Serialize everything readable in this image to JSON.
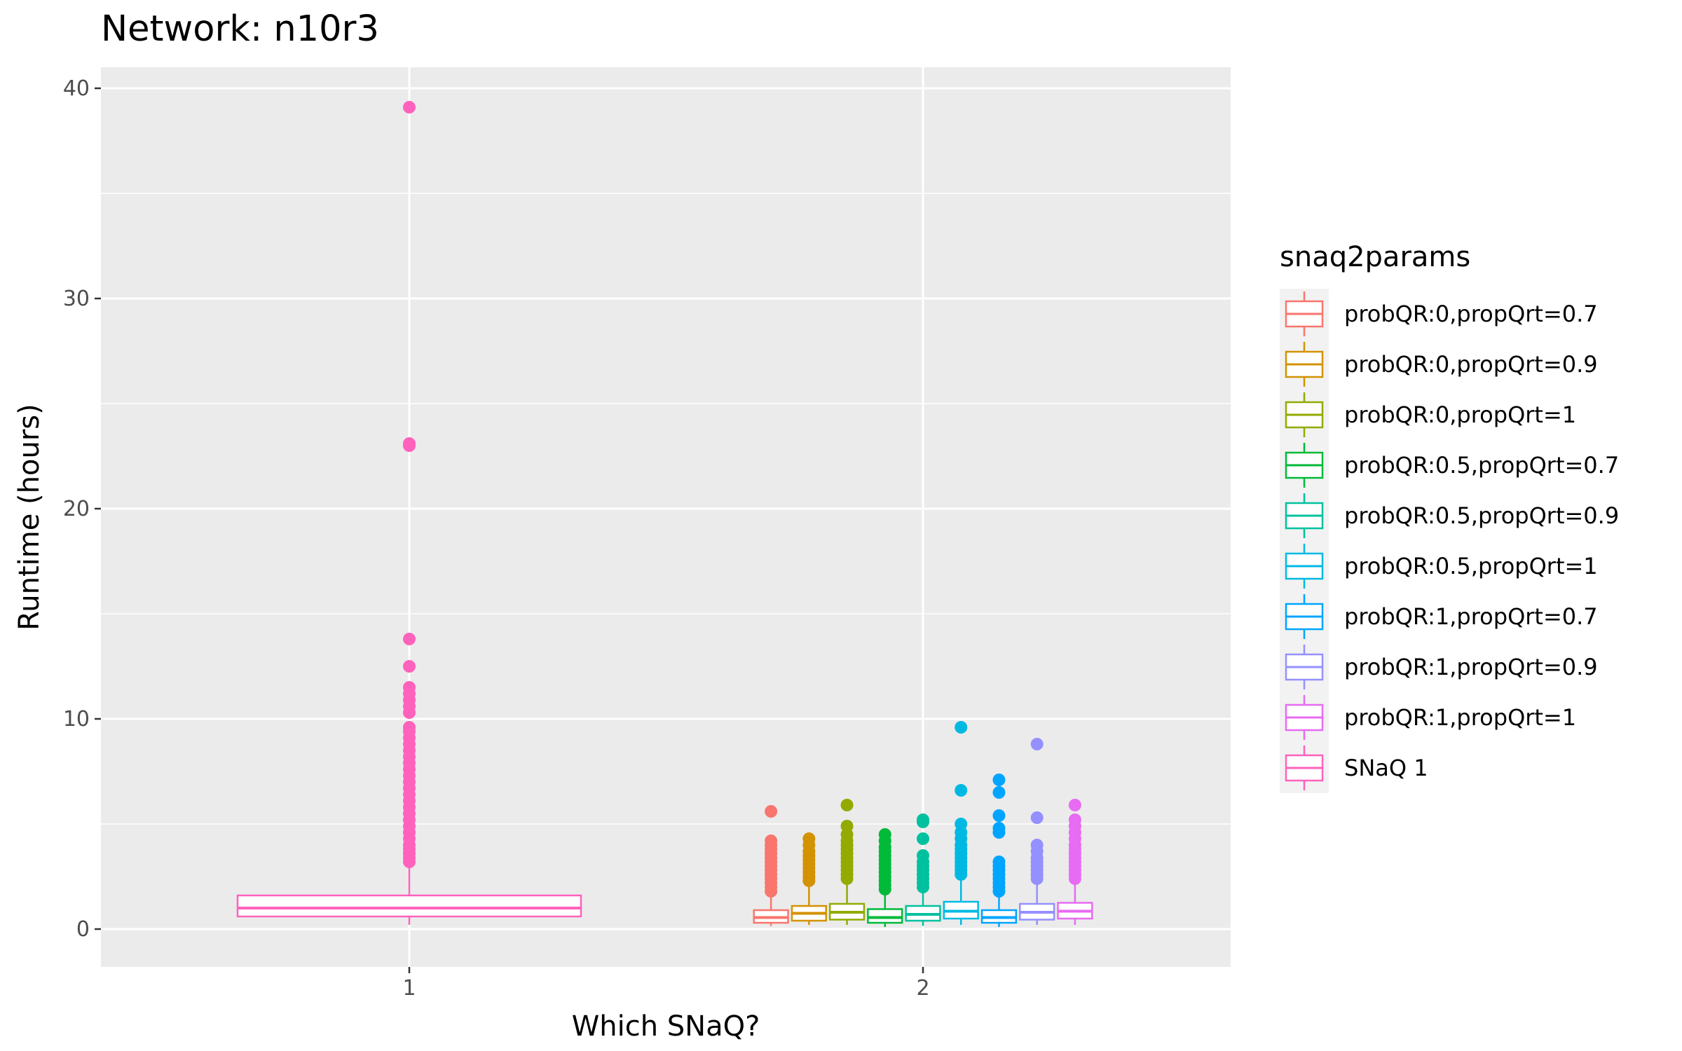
{
  "chart_data": {
    "type": "box",
    "title": "Network: n10r3",
    "xlabel": "Which SNaQ?",
    "ylabel": "Runtime (hours)",
    "categories": [
      "1",
      "2"
    ],
    "yticks": [
      "0",
      "10",
      "20",
      "30",
      "40"
    ],
    "ylim": [
      -1.8,
      41
    ],
    "grid": true,
    "legend_title": "snaq2params",
    "legend_position": "right",
    "series": [
      {
        "name": "probQR:0,propQrt=0.7",
        "color": "#F8766D",
        "category": "2",
        "box": {
          "lower_whisker": 0.15,
          "q1": 0.3,
          "median": 0.55,
          "q3": 0.9,
          "upper_whisker": 1.7
        },
        "outliers": [
          1.8,
          2.0,
          2.2,
          2.4,
          2.6,
          2.8,
          3.0,
          3.2,
          3.4,
          3.6,
          3.8,
          4.0,
          4.2,
          5.6
        ]
      },
      {
        "name": "probQR:0,propQrt=0.9",
        "color": "#D39200",
        "category": "2",
        "box": {
          "lower_whisker": 0.2,
          "q1": 0.4,
          "median": 0.75,
          "q3": 1.1,
          "upper_whisker": 2.2
        },
        "outliers": [
          2.3,
          2.5,
          2.7,
          2.9,
          3.1,
          3.3,
          3.5,
          3.7,
          4.0,
          4.3
        ]
      },
      {
        "name": "probQR:0,propQrt=1",
        "color": "#93AA00",
        "category": "2",
        "box": {
          "lower_whisker": 0.2,
          "q1": 0.45,
          "median": 0.8,
          "q3": 1.2,
          "upper_whisker": 2.3
        },
        "outliers": [
          2.4,
          2.6,
          2.8,
          3.0,
          3.2,
          3.4,
          3.6,
          3.8,
          4.0,
          4.2,
          4.5,
          4.9,
          5.9
        ]
      },
      {
        "name": "probQR:0.5,propQrt=0.7",
        "color": "#00BA38",
        "category": "2",
        "box": {
          "lower_whisker": 0.1,
          "q1": 0.3,
          "median": 0.55,
          "q3": 0.95,
          "upper_whisker": 1.8
        },
        "outliers": [
          1.9,
          2.1,
          2.3,
          2.5,
          2.7,
          2.9,
          3.1,
          3.3,
          3.5,
          3.7,
          3.9,
          4.2,
          4.5
        ]
      },
      {
        "name": "probQR:0.5,propQrt=0.9",
        "color": "#00C19F",
        "category": "2",
        "box": {
          "lower_whisker": 0.15,
          "q1": 0.4,
          "median": 0.7,
          "q3": 1.1,
          "upper_whisker": 1.9
        },
        "outliers": [
          2.0,
          2.2,
          2.4,
          2.6,
          2.8,
          3.0,
          3.2,
          3.5,
          4.3,
          5.1,
          5.2
        ]
      },
      {
        "name": "probQR:0.5,propQrt=1",
        "color": "#00B9E3",
        "category": "2",
        "box": {
          "lower_whisker": 0.2,
          "q1": 0.5,
          "median": 0.85,
          "q3": 1.3,
          "upper_whisker": 2.5
        },
        "outliers": [
          2.6,
          2.8,
          3.0,
          3.2,
          3.4,
          3.6,
          3.8,
          4.0,
          4.3,
          4.6,
          5.0,
          6.6,
          9.6
        ]
      },
      {
        "name": "probQR:1,propQrt=0.7",
        "color": "#00A5FF",
        "category": "2",
        "box": {
          "lower_whisker": 0.1,
          "q1": 0.3,
          "median": 0.55,
          "q3": 0.9,
          "upper_whisker": 1.6
        },
        "outliers": [
          1.8,
          2.0,
          2.2,
          2.4,
          2.6,
          2.8,
          3.0,
          3.2,
          4.6,
          4.8,
          5.4,
          6.5,
          7.1
        ]
      },
      {
        "name": "probQR:1,propQrt=0.9",
        "color": "#9590FF",
        "category": "2",
        "box": {
          "lower_whisker": 0.2,
          "q1": 0.45,
          "median": 0.8,
          "q3": 1.2,
          "upper_whisker": 2.3
        },
        "outliers": [
          2.4,
          2.6,
          2.8,
          3.0,
          3.2,
          3.4,
          3.7,
          4.0,
          5.3,
          8.8
        ]
      },
      {
        "name": "probQR:1,propQrt=1",
        "color": "#E76BF3",
        "category": "2",
        "box": {
          "lower_whisker": 0.2,
          "q1": 0.5,
          "median": 0.85,
          "q3": 1.25,
          "upper_whisker": 2.3
        },
        "outliers": [
          2.4,
          2.6,
          2.8,
          3.0,
          3.2,
          3.4,
          3.6,
          3.8,
          4.0,
          4.3,
          4.6,
          4.9,
          5.2,
          5.9
        ]
      },
      {
        "name": "SNaQ 1",
        "color": "#FF62BC",
        "category": "1",
        "box": {
          "lower_whisker": 0.2,
          "q1": 0.6,
          "median": 1.0,
          "q3": 1.6,
          "upper_whisker": 3.1
        },
        "outliers": [
          3.2,
          3.4,
          3.6,
          3.8,
          4.0,
          4.3,
          4.6,
          4.9,
          5.2,
          5.5,
          5.8,
          6.1,
          6.4,
          6.7,
          7.0,
          7.3,
          7.6,
          7.9,
          8.2,
          8.5,
          8.8,
          9.1,
          9.4,
          9.6,
          10.3,
          10.6,
          10.9,
          11.2,
          11.5,
          12.5,
          13.8,
          23.0,
          23.1,
          39.1
        ]
      }
    ]
  }
}
